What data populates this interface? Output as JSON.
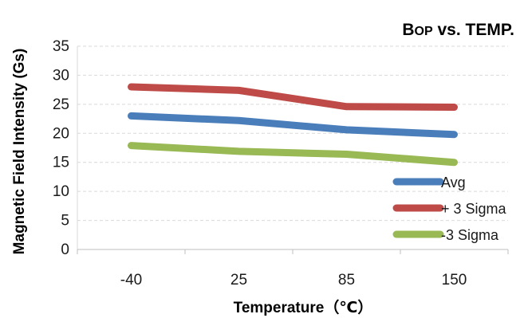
{
  "chart_data": {
    "type": "line",
    "title_prefix": "B",
    "title_sub": "OP",
    "title_rest": " vs. TEMP.",
    "xlabel": "Temperature（℃）",
    "ylabel": "Magnetic Field Intensity (Gs)",
    "categories": [
      "-40",
      "25",
      "85",
      "150"
    ],
    "ylim": [
      0,
      35
    ],
    "yticks": [
      0,
      5,
      10,
      15,
      20,
      25,
      30,
      35
    ],
    "grid": true,
    "legend_position": "right",
    "series": [
      {
        "name": "Avg",
        "values": [
          23,
          22.2,
          20.6,
          19.8
        ],
        "color": "#4a7ebb"
      },
      {
        "name": "+ 3 Sigma",
        "values": [
          28,
          27.4,
          24.6,
          24.5
        ],
        "color": "#be4b48"
      },
      {
        "name": "-3 Sigma",
        "values": [
          17.9,
          16.9,
          16.4,
          15
        ],
        "color": "#98b954"
      }
    ]
  }
}
